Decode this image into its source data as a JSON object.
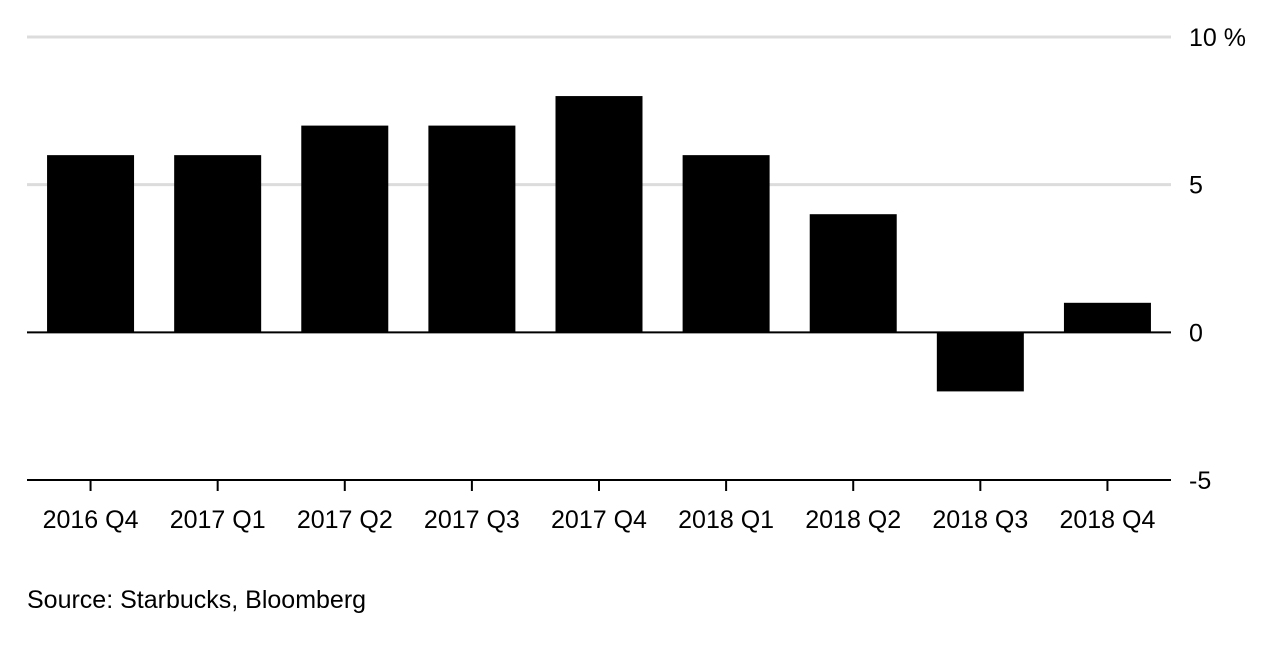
{
  "chart_data": {
    "type": "bar",
    "categories": [
      "2016 Q4",
      "2017 Q1",
      "2017 Q2",
      "2017 Q3",
      "2017 Q4",
      "2018 Q1",
      "2018 Q2",
      "2018 Q3",
      "2018 Q4"
    ],
    "values": [
      6,
      6,
      7,
      7,
      8,
      6,
      4,
      -2,
      1
    ],
    "ylim": [
      -5,
      10
    ],
    "yticks": [
      10,
      5,
      0,
      -5
    ],
    "ytick_labels": [
      "10 %",
      "5",
      "0",
      "-5"
    ],
    "y_axis_position": "right",
    "grid": true,
    "title": "",
    "xlabel": "",
    "ylabel": "",
    "colors": {
      "bar": "#000000",
      "grid": "#dcdcdc",
      "zero_line": "#000000",
      "axis": "#000000"
    }
  },
  "source": "Source: Starbucks, Bloomberg"
}
